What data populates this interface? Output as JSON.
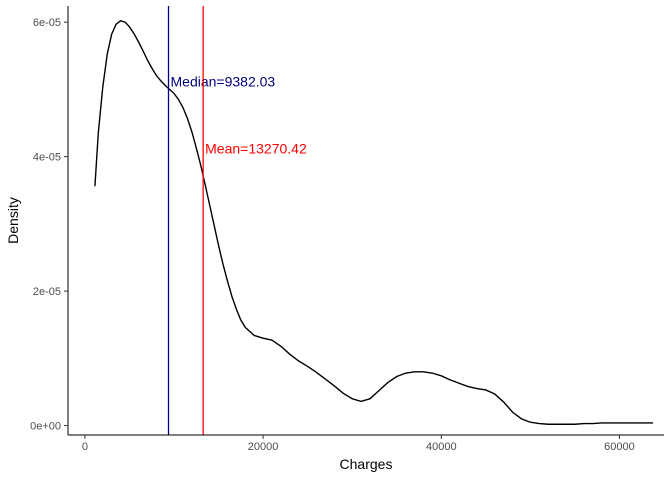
{
  "chart_data": {
    "type": "line",
    "xlabel": "Charges",
    "ylabel": "Density",
    "xlim": [
      -1900,
      65000
    ],
    "ylim": [
      -1.4e-06,
      6.24e-05
    ],
    "x_ticks": [
      {
        "value": 0,
        "label": "0"
      },
      {
        "value": 20000,
        "label": "20000"
      },
      {
        "value": 40000,
        "label": "40000"
      },
      {
        "value": 60000,
        "label": "60000"
      }
    ],
    "y_ticks": [
      {
        "value": 0,
        "label": "0e+00"
      },
      {
        "value": 2e-05,
        "label": "2e-05"
      },
      {
        "value": 4e-05,
        "label": "4e-05"
      },
      {
        "value": 6e-05,
        "label": "6e-05"
      }
    ],
    "grid": false,
    "series": [
      {
        "color": "#000000",
        "x": [
          1122,
          1500,
          2000,
          2500,
          3000,
          3500,
          4000,
          4500,
          5000,
          5500,
          6000,
          6500,
          7000,
          7500,
          8000,
          8500,
          9000,
          9500,
          10000,
          10500,
          11000,
          11500,
          12000,
          12500,
          13000,
          13500,
          14000,
          14500,
          15000,
          15500,
          16000,
          16500,
          17000,
          17500,
          18000,
          19000,
          20000,
          21000,
          22000,
          23000,
          24000,
          25000,
          26000,
          27000,
          28000,
          29000,
          30000,
          31000,
          32000,
          33000,
          34000,
          35000,
          36000,
          37000,
          38000,
          39000,
          40000,
          41000,
          42000,
          43000,
          44000,
          45000,
          46000,
          47000,
          48000,
          49000,
          50000,
          51000,
          52000,
          53000,
          54000,
          55000,
          56000,
          57000,
          58000,
          59000,
          60000,
          61000,
          62000,
          63000,
          63770
        ],
        "y": [
          3.56e-05,
          4.35e-05,
          5.03e-05,
          5.52e-05,
          5.82e-05,
          5.97e-05,
          6.02e-05,
          6e-05,
          5.93e-05,
          5.83e-05,
          5.71e-05,
          5.58e-05,
          5.44e-05,
          5.32e-05,
          5.21e-05,
          5.13e-05,
          5.06e-05,
          5e-05,
          4.94e-05,
          4.85e-05,
          4.73e-05,
          4.57e-05,
          4.37e-05,
          4.13e-05,
          3.87e-05,
          3.58e-05,
          3.28e-05,
          2.98e-05,
          2.68e-05,
          2.4e-05,
          2.15e-05,
          1.92e-05,
          1.73e-05,
          1.57e-05,
          1.46e-05,
          1.34e-05,
          1.3e-05,
          1.27e-05,
          1.18e-05,
          1.06e-05,
          9.6e-06,
          8.8e-06,
          7.9e-06,
          6.9e-06,
          5.9e-06,
          4.8e-06,
          4e-06,
          3.6e-06,
          4e-06,
          5.2e-06,
          6.4e-06,
          7.3e-06,
          7.8e-06,
          8e-06,
          8e-06,
          7.8e-06,
          7.4e-06,
          6.8e-06,
          6.3e-06,
          5.8e-06,
          5.5e-06,
          5.3e-06,
          4.7e-06,
          3.5e-06,
          2e-06,
          1e-06,
          5e-07,
          3e-07,
          2e-07,
          2e-07,
          2e-07,
          2e-07,
          3e-07,
          3e-07,
          4e-07,
          4e-07,
          4e-07,
          4e-07,
          4e-07,
          4e-07,
          4e-07
        ]
      }
    ],
    "annotations": [
      {
        "label": "Median=9382.03",
        "value": 9382.03,
        "label_y": 5.12e-05,
        "color": "#00007f"
      },
      {
        "label": "Mean=13270.42",
        "value": 13270.42,
        "label_y": 4.12e-05,
        "color": "#ff0000"
      }
    ]
  }
}
